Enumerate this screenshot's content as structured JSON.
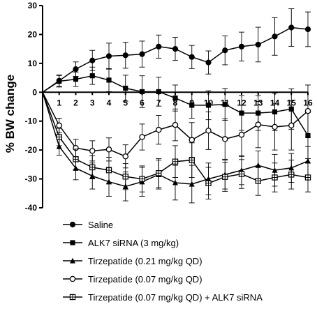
{
  "chart_data": {
    "type": "line",
    "title": "",
    "xlabel": "",
    "ylabel": "% BW change",
    "x": [
      0,
      1,
      2,
      3,
      4,
      5,
      6,
      7,
      8,
      9,
      10,
      11,
      12,
      13,
      14,
      15,
      16
    ],
    "x_tick_labels": [
      "1",
      "2",
      "3",
      "4",
      "5",
      "6",
      "7",
      "8",
      "9",
      "10",
      "11",
      "12",
      "13",
      "14",
      "15",
      "16"
    ],
    "y_ticks": [
      30,
      20,
      10,
      0,
      -10,
      -20,
      -30,
      -40
    ],
    "xlim": [
      0,
      16
    ],
    "ylim": [
      -40,
      30
    ],
    "grid": false,
    "legend_position": "bottom",
    "series": [
      {
        "name": "Saline",
        "marker": "filled-circle",
        "values": [
          0,
          4.0,
          8.0,
          11.0,
          12.5,
          12.8,
          13.2,
          15.8,
          15.0,
          12.2,
          10.3,
          14.5,
          15.8,
          16.5,
          19.3,
          22.4,
          21.8
        ],
        "errors": [
          0,
          2.0,
          2.5,
          3.5,
          4.5,
          4.5,
          4.5,
          4.0,
          4.0,
          4.0,
          4.0,
          5.0,
          5.0,
          6.0,
          6.5,
          6.5,
          6.0
        ]
      },
      {
        "name": "ALK7 siRNA (3 mg/kg)",
        "marker": "filled-square",
        "values": [
          0,
          3.8,
          4.5,
          5.7,
          4.2,
          1.4,
          0.2,
          0.2,
          -2.0,
          -4.5,
          -4.5,
          -4.2,
          -7.2,
          -7.2,
          -6.8,
          -5.8,
          -15.0
        ],
        "errors": [
          0,
          2.0,
          2.5,
          3.0,
          4.0,
          4.5,
          5.5,
          5.0,
          4.5,
          4.5,
          5.0,
          5.5,
          6.0,
          6.0,
          6.5,
          7.0,
          8.0
        ]
      },
      {
        "name": "Tirzepatide (0.21 mg/kg QD)",
        "marker": "filled-triangle",
        "values": [
          0,
          -18.8,
          -26.3,
          -29.0,
          -31.0,
          -32.6,
          -31.0,
          -28.5,
          -31.3,
          -31.8,
          -30.0,
          -28.5,
          -27.0,
          -25.3,
          -27.0,
          -26.2,
          -23.8
        ],
        "errors": [
          0,
          3.0,
          4.0,
          4.5,
          5.0,
          5.0,
          5.0,
          5.0,
          6.0,
          6.5,
          5.5,
          5.0,
          5.0,
          5.0,
          5.5,
          5.0,
          5.0
        ]
      },
      {
        "name": "Tirzepatide (0.07 mg/kg QD)",
        "marker": "open-circle",
        "values": [
          0,
          -11.5,
          -19.3,
          -20.3,
          -19.8,
          -22.2,
          -15.5,
          -13.0,
          -11.3,
          -16.5,
          -13.3,
          -16.2,
          -14.7,
          -11.2,
          -12.0,
          -11.5,
          -6.5
        ],
        "errors": [
          0,
          2.5,
          3.0,
          3.5,
          4.0,
          4.0,
          4.5,
          5.0,
          5.5,
          6.0,
          6.5,
          7.0,
          7.5,
          8.0,
          8.0,
          8.5,
          9.0
        ]
      },
      {
        "name": "Tirzepatide (0.07 mg/kg QD) + ALK7 siRNA",
        "marker": "open-square-cross",
        "values": [
          0,
          -15.5,
          -23.2,
          -26.0,
          -27.0,
          -29.2,
          -30.0,
          -28.0,
          -24.0,
          -23.5,
          -31.5,
          -29.3,
          -28.3,
          -30.7,
          -29.5,
          -28.5,
          -29.5
        ],
        "errors": [
          0,
          3.0,
          3.5,
          4.0,
          4.5,
          4.5,
          4.5,
          5.0,
          5.5,
          6.0,
          5.5,
          5.0,
          5.0,
          5.0,
          5.0,
          5.0,
          5.0
        ]
      }
    ]
  }
}
